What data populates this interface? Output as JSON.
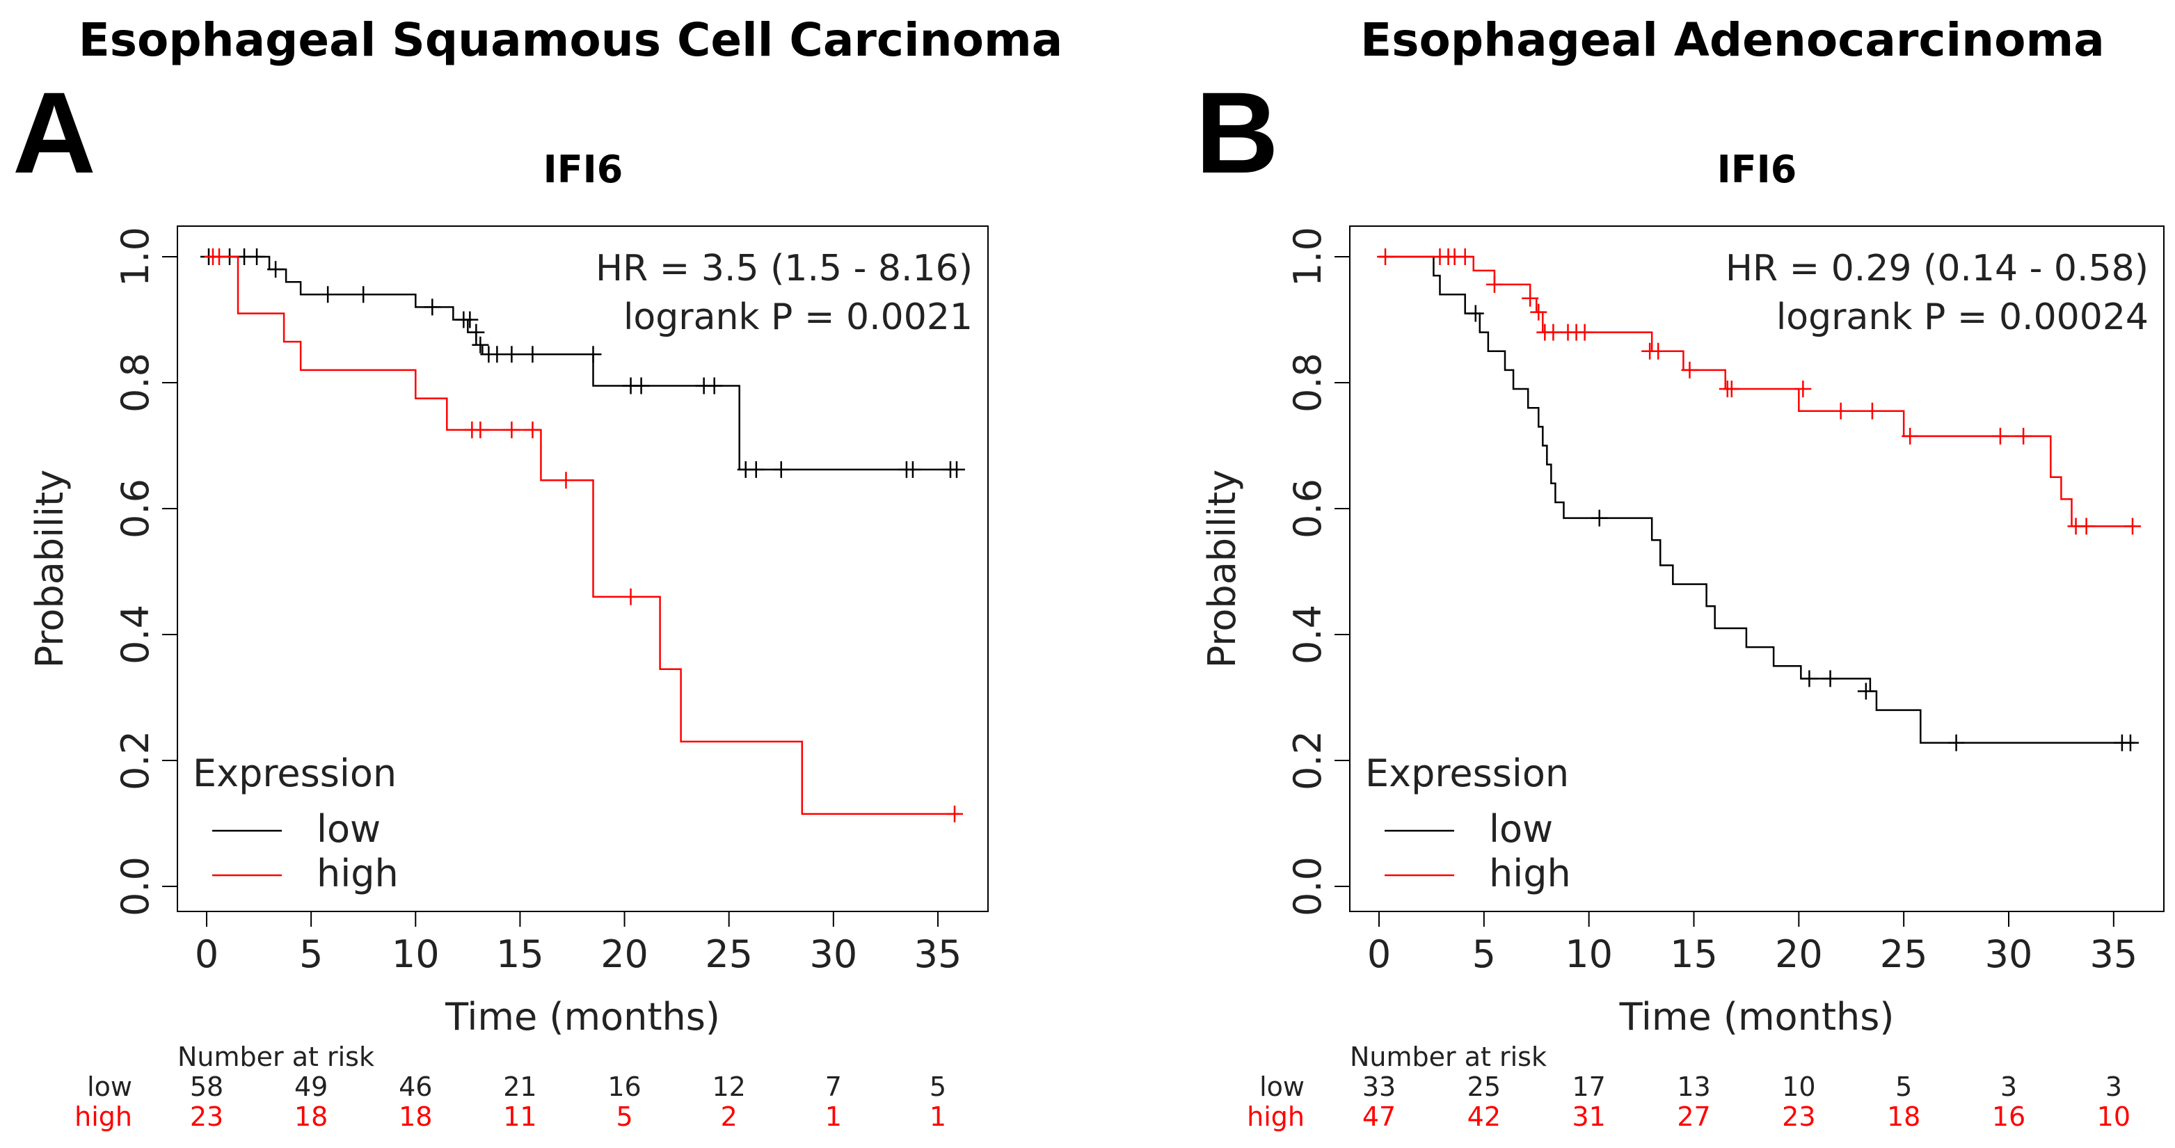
{
  "header_titles": [
    "Esophageal Squamous Cell Carcinoma",
    "Esophageal Adenocarcinoma"
  ],
  "colors": {
    "low": "#000000",
    "high": "#ff0000",
    "risk_high_text": "#ff0000"
  },
  "chart_data": [
    {
      "panel": "A",
      "type": "line",
      "step": true,
      "title": "IFI6",
      "xlabel": "Time (months)",
      "ylabel": "Probability",
      "xlim": [
        0,
        36
      ],
      "ylim": [
        0,
        1
      ],
      "xticks": [
        "0",
        "5",
        "10",
        "15",
        "20",
        "25",
        "30",
        "35"
      ],
      "yticks": [
        "0.0",
        "0.2",
        "0.4",
        "0.6",
        "0.8",
        "1.0"
      ],
      "annotations": [
        "HR = 3.5 (1.5 - 8.16)",
        "logrank P = 0.0021"
      ],
      "legend": {
        "title": "Expression",
        "entries": [
          "low",
          "high"
        ],
        "position": "bottom-left"
      },
      "series": [
        {
          "name": "low",
          "steps": [
            [
              0,
              1.0
            ],
            [
              3,
              0.98
            ],
            [
              3.8,
              0.96
            ],
            [
              4.5,
              0.94
            ],
            [
              10,
              0.92
            ],
            [
              11.8,
              0.9
            ],
            [
              12.5,
              0.88
            ],
            [
              12.9,
              0.86
            ],
            [
              13.2,
              0.845
            ],
            [
              18.5,
              0.795
            ],
            [
              25.5,
              0.662
            ],
            [
              36,
              0.662
            ]
          ],
          "censored": [
            [
              0.1,
              1.0
            ],
            [
              1.1,
              1.0
            ],
            [
              1.8,
              1.0
            ],
            [
              2.4,
              1.0
            ],
            [
              3.3,
              0.98
            ],
            [
              5.8,
              0.94
            ],
            [
              7.5,
              0.94
            ],
            [
              10.8,
              0.92
            ],
            [
              12.3,
              0.9
            ],
            [
              12.6,
              0.9
            ],
            [
              12.9,
              0.88
            ],
            [
              13.1,
              0.86
            ],
            [
              13.5,
              0.845
            ],
            [
              13.9,
              0.845
            ],
            [
              14.6,
              0.845
            ],
            [
              15.6,
              0.845
            ],
            [
              18.5,
              0.845
            ],
            [
              20.3,
              0.795
            ],
            [
              20.8,
              0.795
            ],
            [
              23.8,
              0.795
            ],
            [
              24.3,
              0.795
            ],
            [
              25.8,
              0.662
            ],
            [
              26.3,
              0.662
            ],
            [
              27.5,
              0.662
            ],
            [
              33.5,
              0.662
            ],
            [
              33.8,
              0.662
            ],
            [
              35.6,
              0.662
            ],
            [
              35.9,
              0.662
            ]
          ]
        },
        {
          "name": "high",
          "steps": [
            [
              0,
              1.0
            ],
            [
              1.5,
              0.91
            ],
            [
              3.7,
              0.865
            ],
            [
              4.5,
              0.82
            ],
            [
              10,
              0.775
            ],
            [
              11.5,
              0.725
            ],
            [
              16,
              0.645
            ],
            [
              18.5,
              0.46
            ],
            [
              21.7,
              0.345
            ],
            [
              22.7,
              0.23
            ],
            [
              28.5,
              0.115
            ],
            [
              36,
              0.115
            ]
          ],
          "censored": [
            [
              0.3,
              1.0
            ],
            [
              0.6,
              1.0
            ],
            [
              12.7,
              0.725
            ],
            [
              13.1,
              0.725
            ],
            [
              14.6,
              0.725
            ],
            [
              15.6,
              0.725
            ],
            [
              17.2,
              0.645
            ],
            [
              20.3,
              0.46
            ],
            [
              35.8,
              0.115
            ]
          ]
        }
      ],
      "risk_table": {
        "header": "Number at risk",
        "times": [
          0,
          5,
          10,
          15,
          20,
          25,
          30,
          35
        ],
        "low": [
          "58",
          "49",
          "46",
          "21",
          "16",
          "12",
          "7",
          "5"
        ],
        "high": [
          "23",
          "18",
          "18",
          "11",
          "5",
          "2",
          "1",
          "1"
        ]
      }
    },
    {
      "panel": "B",
      "type": "line",
      "step": true,
      "title": "IFI6",
      "xlabel": "Time (months)",
      "ylabel": "Probability",
      "xlim": [
        0,
        36
      ],
      "ylim": [
        0,
        1
      ],
      "xticks": [
        "0",
        "5",
        "10",
        "15",
        "20",
        "25",
        "30",
        "35"
      ],
      "yticks": [
        "0.0",
        "0.2",
        "0.4",
        "0.6",
        "0.8",
        "1.0"
      ],
      "annotations": [
        "HR = 0.29 (0.14 - 0.58)",
        "logrank P = 0.00024"
      ],
      "legend": {
        "title": "Expression",
        "entries": [
          "low",
          "high"
        ],
        "position": "bottom-left"
      },
      "series": [
        {
          "name": "low",
          "steps": [
            [
              0,
              1.0
            ],
            [
              2.6,
              0.97
            ],
            [
              2.9,
              0.94
            ],
            [
              4.1,
              0.91
            ],
            [
              4.8,
              0.88
            ],
            [
              5.2,
              0.85
            ],
            [
              6,
              0.82
            ],
            [
              6.4,
              0.79
            ],
            [
              7.1,
              0.76
            ],
            [
              7.6,
              0.73
            ],
            [
              7.8,
              0.7
            ],
            [
              8,
              0.67
            ],
            [
              8.2,
              0.64
            ],
            [
              8.4,
              0.61
            ],
            [
              8.8,
              0.585
            ],
            [
              13,
              0.55
            ],
            [
              13.4,
              0.51
            ],
            [
              14,
              0.48
            ],
            [
              15.6,
              0.445
            ],
            [
              16,
              0.41
            ],
            [
              17.5,
              0.38
            ],
            [
              18.8,
              0.35
            ],
            [
              20.1,
              0.33
            ],
            [
              23.4,
              0.31
            ],
            [
              23.7,
              0.28
            ],
            [
              25.8,
              0.228
            ],
            [
              36,
              0.228
            ]
          ],
          "censored": [
            [
              4.6,
              0.91
            ],
            [
              10.5,
              0.585
            ],
            [
              20.5,
              0.33
            ],
            [
              21.5,
              0.33
            ],
            [
              23.2,
              0.31
            ],
            [
              27.5,
              0.228
            ],
            [
              35.4,
              0.228
            ],
            [
              35.8,
              0.228
            ]
          ]
        },
        {
          "name": "high",
          "steps": [
            [
              0,
              1.0
            ],
            [
              4.5,
              0.978
            ],
            [
              5.5,
              0.956
            ],
            [
              7.2,
              0.934
            ],
            [
              7.5,
              0.912
            ],
            [
              7.8,
              0.88
            ],
            [
              13,
              0.85
            ],
            [
              14.5,
              0.82
            ],
            [
              16.5,
              0.79
            ],
            [
              20,
              0.755
            ],
            [
              25,
              0.715
            ],
            [
              32,
              0.65
            ],
            [
              32.5,
              0.615
            ],
            [
              33,
              0.572
            ],
            [
              36,
              0.572
            ]
          ],
          "censored": [
            [
              0.3,
              1.0
            ],
            [
              2.9,
              1.0
            ],
            [
              3.3,
              1.0
            ],
            [
              3.6,
              1.0
            ],
            [
              4.1,
              1.0
            ],
            [
              5.5,
              0.956
            ],
            [
              7.2,
              0.934
            ],
            [
              7.6,
              0.912
            ],
            [
              7.9,
              0.88
            ],
            [
              8.3,
              0.88
            ],
            [
              9.0,
              0.88
            ],
            [
              9.4,
              0.88
            ],
            [
              9.8,
              0.88
            ],
            [
              12.9,
              0.85
            ],
            [
              13.3,
              0.85
            ],
            [
              14.8,
              0.82
            ],
            [
              16.6,
              0.79
            ],
            [
              16.8,
              0.79
            ],
            [
              20.2,
              0.79
            ],
            [
              22,
              0.755
            ],
            [
              23.5,
              0.755
            ],
            [
              25.3,
              0.715
            ],
            [
              29.6,
              0.715
            ],
            [
              30.7,
              0.715
            ],
            [
              33.2,
              0.572
            ],
            [
              33.7,
              0.572
            ],
            [
              35.9,
              0.572
            ]
          ]
        }
      ],
      "risk_table": {
        "header": "Number at risk",
        "times": [
          0,
          5,
          10,
          15,
          20,
          25,
          30,
          35
        ],
        "low": [
          "33",
          "25",
          "17",
          "13",
          "10",
          "5",
          "3",
          "3"
        ],
        "high": [
          "47",
          "42",
          "31",
          "27",
          "23",
          "18",
          "16",
          "10"
        ]
      }
    }
  ]
}
